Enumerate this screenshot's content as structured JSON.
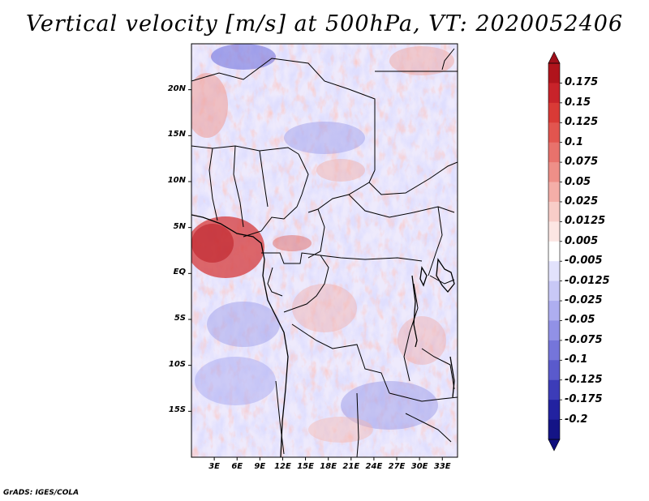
{
  "title": "Vertical velocity [m/s] at 500hPa, VT: 2020052406",
  "credit": "GrADS: IGES/COLA",
  "map": {
    "projection": "latlon",
    "lat_range": [
      -20,
      25
    ],
    "lon_range": [
      0,
      35
    ],
    "lat_ticks": [
      {
        "value": 20,
        "label": "20N"
      },
      {
        "value": 15,
        "label": "15N"
      },
      {
        "value": 10,
        "label": "10N"
      },
      {
        "value": 5,
        "label": "5N"
      },
      {
        "value": 0,
        "label": "EQ"
      },
      {
        "value": -5,
        "label": "5S"
      },
      {
        "value": -10,
        "label": "10S"
      },
      {
        "value": -15,
        "label": "15S"
      }
    ],
    "lon_ticks": [
      {
        "value": 3,
        "label": "3E"
      },
      {
        "value": 6,
        "label": "6E"
      },
      {
        "value": 9,
        "label": "9E"
      },
      {
        "value": 12,
        "label": "12E"
      },
      {
        "value": 15,
        "label": "15E"
      },
      {
        "value": 18,
        "label": "18E"
      },
      {
        "value": 21,
        "label": "21E"
      },
      {
        "value": 24,
        "label": "24E"
      },
      {
        "value": 27,
        "label": "27E"
      },
      {
        "value": 30,
        "label": "30E"
      },
      {
        "value": 33,
        "label": "33E"
      }
    ]
  },
  "colorbar": {
    "labels": [
      "0.175",
      "0.15",
      "0.125",
      "0.1",
      "0.075",
      "0.05",
      "0.025",
      "0.0125",
      "0.005",
      "-0.005",
      "-0.0125",
      "-0.025",
      "-0.05",
      "-0.075",
      "-0.1",
      "-0.125",
      "-0.175",
      "-0.2"
    ],
    "colors": [
      "#b0141c",
      "#c8232a",
      "#d93a36",
      "#e2554f",
      "#e8726c",
      "#ee8f88",
      "#f4aea8",
      "#f8cdc8",
      "#fce6e3",
      "#ffffff",
      "#e2e2fc",
      "#c8c8f6",
      "#aeaef0",
      "#9191e6",
      "#7575da",
      "#5a5acc",
      "#3c3cb8",
      "#2222a0",
      "#141486"
    ],
    "top_color": "#a0101a",
    "bottom_color": "#10107e"
  }
}
